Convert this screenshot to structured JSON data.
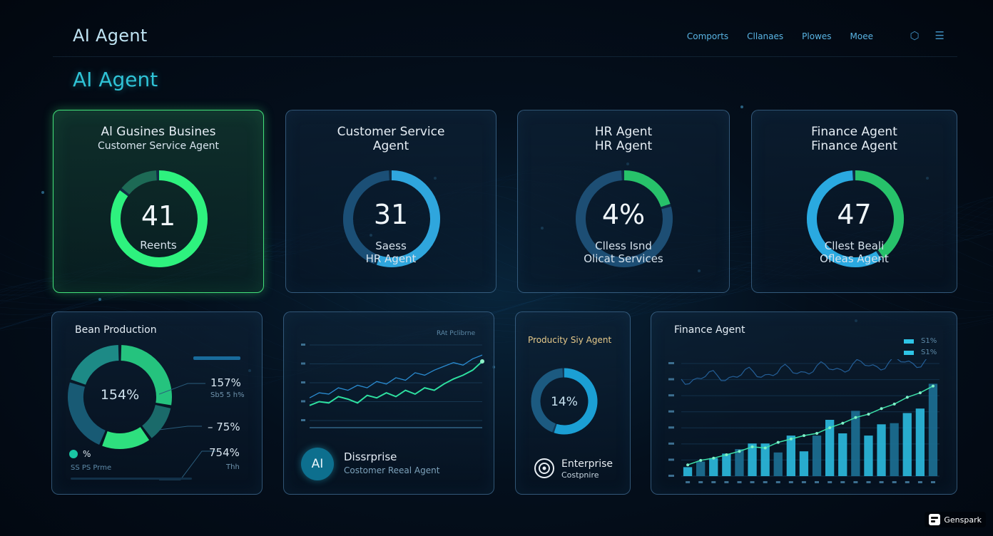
{
  "header": {
    "app_title": "AI Agent",
    "nav": [
      "Comports",
      "Cllanaes",
      "Plowes",
      "Moee"
    ],
    "icons": [
      "hexagon-icon",
      "menu-icon"
    ]
  },
  "page_title": "AI Agent",
  "cards": [
    {
      "title": "Al Gusines Busines",
      "subtitle": "Customer Service Agent",
      "value": "41",
      "label": "Reents",
      "label2": "",
      "progress": 0.85,
      "colors": [
        "#2ef27e",
        "#1d6a55"
      ]
    },
    {
      "title": "Customer Service",
      "subtitle": "Agent",
      "value": "31",
      "label": "Saess",
      "label2": "HR Agent",
      "progress": 0.55,
      "colors": [
        "#2fa6dd",
        "#1b4f76"
      ]
    },
    {
      "title": "HR Agent",
      "subtitle": "HR Agent",
      "value": "4%",
      "label": "Clless Isnd",
      "label2": "Olicat Services",
      "progress": 0.2,
      "colors": [
        "#27c26a",
        "#1d4e74"
      ]
    },
    {
      "title": "Finance Agent",
      "subtitle": "Finance Agent",
      "value": "47",
      "label": "Cllest Beali",
      "label2": "Ofleas Agent",
      "progress": 0.4,
      "colors": [
        "#27c26a",
        "#2aa9e0"
      ]
    }
  ],
  "bean_panel": {
    "title": "Bean Production",
    "center_value": "154%",
    "stats": [
      {
        "value": "157%",
        "sub": "Sb5 5 h%"
      },
      {
        "value": "– 75%",
        "sub": ""
      },
      {
        "value": "754%",
        "sub": "Thh"
      }
    ],
    "legend_value": "%",
    "footer": "SS PS Prme"
  },
  "trend_panel": {
    "title": "RAt Pclibrne",
    "badge_text": "AI",
    "name": "Dissrprise",
    "subtitle": "Costomer Reeal Agent"
  },
  "productivity_panel": {
    "title": "Producity Siy Agent",
    "value": "14%",
    "progress": 0.55,
    "name": "Enterprise",
    "subtitle": "Costpnire"
  },
  "finance_panel": {
    "title": "Finance Agent",
    "legend": [
      "S1%",
      "S1%"
    ]
  },
  "brand": "Genspark",
  "chart_data": [
    {
      "type": "line",
      "title": "",
      "series": [
        {
          "values": [
            18,
            22,
            21,
            26,
            24,
            28,
            26,
            31,
            29,
            34,
            32,
            38,
            36,
            40,
            43,
            46,
            44,
            49,
            52
          ]
        },
        {
          "values": [
            12,
            15,
            14,
            19,
            17,
            14,
            20,
            18,
            22,
            19,
            24,
            21,
            26,
            24,
            29,
            33,
            36,
            40,
            47
          ]
        }
      ],
      "ylim": [
        0,
        60
      ]
    },
    {
      "type": "bar",
      "title": "",
      "values": [
        8,
        13,
        16,
        20,
        24,
        29,
        29,
        21,
        36,
        22,
        36,
        50,
        38,
        58,
        36,
        46,
        47,
        56,
        60,
        82
      ],
      "line": [
        10,
        14,
        16,
        19,
        22,
        26,
        25,
        30,
        33,
        36,
        38,
        43,
        47,
        52,
        55,
        60,
        64,
        70,
        74,
        80
      ],
      "ylim": [
        0,
        100
      ]
    }
  ]
}
